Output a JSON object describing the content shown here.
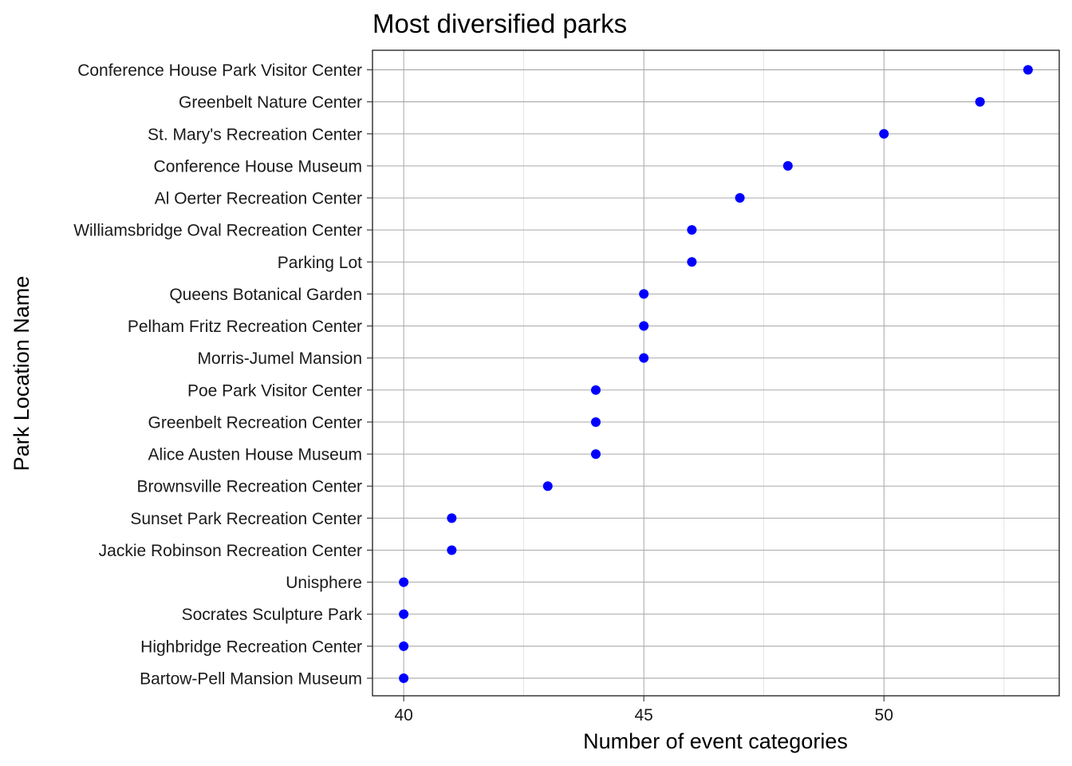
{
  "chart_data": {
    "type": "scatter",
    "title": "Most diversified parks",
    "xlabel": "Number of event categories",
    "ylabel": "Park Location Name",
    "xlim": [
      39.35,
      53.65
    ],
    "x_ticks": [
      40,
      45,
      50
    ],
    "x_minor_ticks": [
      42.5,
      47.5,
      52.5
    ],
    "grid": true,
    "point_color": "#0000ff",
    "categories": [
      "Conference House Park Visitor Center",
      "Greenbelt Nature Center",
      "St. Mary's Recreation Center",
      "Conference House Museum",
      "Al Oerter Recreation Center",
      "Williamsbridge Oval Recreation Center",
      "Parking Lot",
      "Queens Botanical Garden",
      "Pelham Fritz Recreation Center",
      "Morris-Jumel Mansion",
      "Poe Park Visitor Center",
      "Greenbelt Recreation Center",
      "Alice Austen House Museum",
      "Brownsville Recreation Center",
      "Sunset Park Recreation Center",
      "Jackie Robinson Recreation Center",
      "Unisphere",
      "Socrates Sculpture Park",
      "Highbridge Recreation Center",
      "Bartow-Pell Mansion Museum"
    ],
    "values": [
      53,
      52,
      50,
      48,
      47,
      46,
      46,
      45,
      45,
      45,
      44,
      44,
      44,
      43,
      41,
      41,
      40,
      40,
      40,
      40
    ]
  }
}
